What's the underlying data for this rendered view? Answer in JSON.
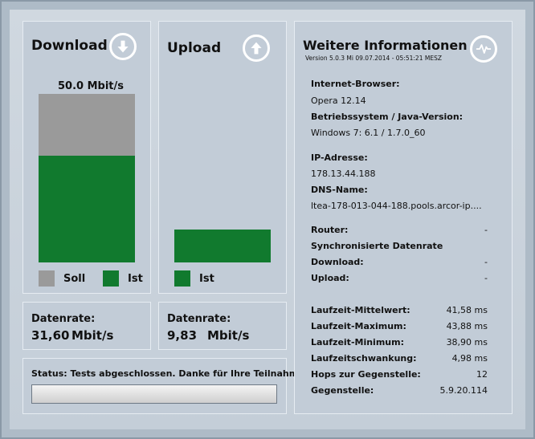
{
  "download": {
    "title": "Download",
    "icon": "arrow-down-circle-icon",
    "soll_label": "50.0 Mbit/s",
    "soll_value": 50.0,
    "ist_value": 31.6,
    "legend_soll": "Soll",
    "legend_ist": "Ist",
    "colors": {
      "soll": "#9a9a9a",
      "ist": "#117a2e"
    }
  },
  "upload": {
    "title": "Upload",
    "icon": "arrow-up-circle-icon",
    "ist_value": 9.83,
    "legend_ist": "Ist"
  },
  "rates": {
    "label": "Datenrate:",
    "download_value": "31,60",
    "upload_value": "9,83",
    "unit": "Mbit/s"
  },
  "status": {
    "text": "Status: Tests abgeschlossen. Danke für Ihre Teilnahme!"
  },
  "info": {
    "title": "Weitere Informationen",
    "version": "Version 5.0.3    Mi 09.07.2014 - 05:51:21 MESZ",
    "icon": "heartbeat-circle-icon",
    "browser_label": "Internet-Browser:",
    "browser_value": "Opera 12.14",
    "os_label": "Betriebssystem / Java-Version:",
    "os_value": "Windows 7: 6.1 / 1.7.0_60",
    "ip_label": "IP-Adresse:",
    "ip_value": "178.13.44.188",
    "dns_label": "DNS-Name:",
    "dns_value": "ltea-178-013-044-188.pools.arcor-ip....",
    "router_label": "Router:",
    "router_value": "-",
    "sync_label": "Synchronisierte Datenrate",
    "sync_download_label": "Download:",
    "sync_download_value": "-",
    "sync_upload_label": "Upload:",
    "sync_upload_value": "-",
    "rows": [
      {
        "label": "Laufzeit-Mittelwert:",
        "value": "41,58 ms"
      },
      {
        "label": "Laufzeit-Maximum:",
        "value": "43,88 ms"
      },
      {
        "label": "Laufzeit-Minimum:",
        "value": "38,90 ms"
      },
      {
        "label": "Laufzeitschwankung:",
        "value": "4,98 ms"
      },
      {
        "label": "Hops zur Gegenstelle:",
        "value": "12"
      },
      {
        "label": "Gegenstelle:",
        "value": "5.9.20.114"
      }
    ]
  }
}
